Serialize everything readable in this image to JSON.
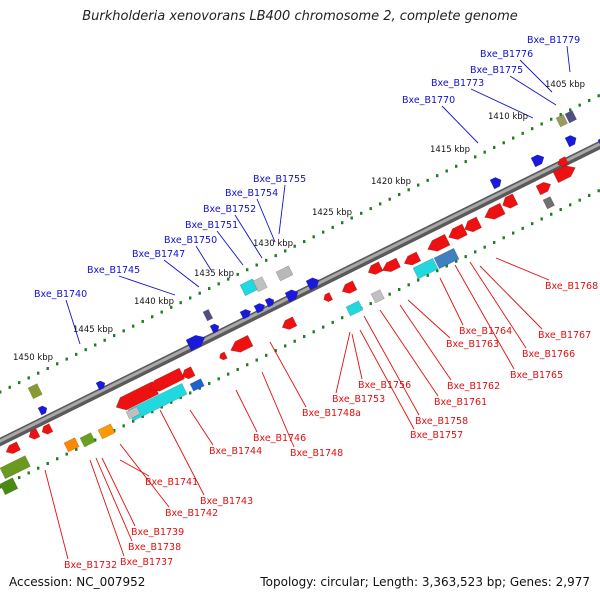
{
  "title": "Burkholderia xenovorans LB400 chromosome 2, complete genome",
  "accession": "Accession: NC_007952",
  "summary": "Topology: circular; Length: 3,363,523 bp; Genes: 2,977",
  "colors": {
    "forward_label": "#1111cc",
    "reverse_label": "#e01010",
    "backbone": "#808080",
    "tick": "#1e7d1e",
    "forward_gene": "#1a1adc",
    "reverse_gene": "#ee1111"
  },
  "scale_ticks": [
    "1405 kbp",
    "1410 kbp",
    "1415 kbp",
    "1420 kbp",
    "1425 kbp",
    "1430 kbp",
    "1435 kbp",
    "1440 kbp",
    "1445 kbp",
    "1450 kbp"
  ],
  "forward_genes": [
    "Bxe_B1779",
    "Bxe_B1776",
    "Bxe_B1775",
    "Bxe_B1773",
    "Bxe_B1770",
    "Bxe_B1755",
    "Bxe_B1754",
    "Bxe_B1752",
    "Bxe_B1751",
    "Bxe_B1750",
    "Bxe_B1747",
    "Bxe_B1745",
    "Bxe_B1740"
  ],
  "reverse_genes": [
    "Bxe_B1768",
    "Bxe_B1767",
    "Bxe_B1764",
    "Bxe_B1766",
    "Bxe_B1765",
    "Bxe_B1763",
    "Bxe_B1762",
    "Bxe_B1761",
    "Bxe_B1758",
    "Bxe_B1757",
    "Bxe_B1756",
    "Bxe_B1753",
    "Bxe_B1748a",
    "Bxe_B1748",
    "Bxe_B1746",
    "Bxe_B1744",
    "Bxe_B1743",
    "Bxe_B1742",
    "Bxe_B1741",
    "Bxe_B1739",
    "Bxe_B1738",
    "Bxe_B1737",
    "Bxe_B1732"
  ]
}
